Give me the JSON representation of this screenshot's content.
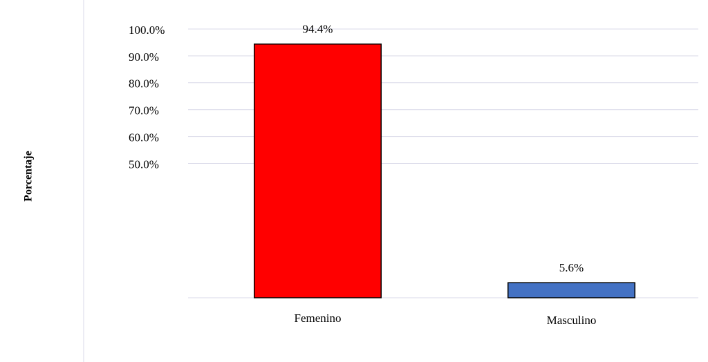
{
  "chart_data": {
    "type": "bar",
    "y_label": "Porcentaje",
    "categories": [
      "Femenino",
      "Masculino"
    ],
    "values": [
      94.4,
      5.6
    ],
    "value_labels": [
      "94.4%",
      "5.6%"
    ],
    "colors": [
      "#ff0000",
      "#4472c4"
    ],
    "ylim": [
      0,
      100
    ],
    "yticks": [
      {
        "value": 50,
        "label": "50.0%"
      },
      {
        "value": 60,
        "label": "60.0%"
      },
      {
        "value": 70,
        "label": "70.0%"
      },
      {
        "value": 80,
        "label": "80.0%"
      },
      {
        "value": 90,
        "label": "90.0%"
      },
      {
        "value": 100,
        "label": "100.0%"
      }
    ],
    "grid": true
  }
}
